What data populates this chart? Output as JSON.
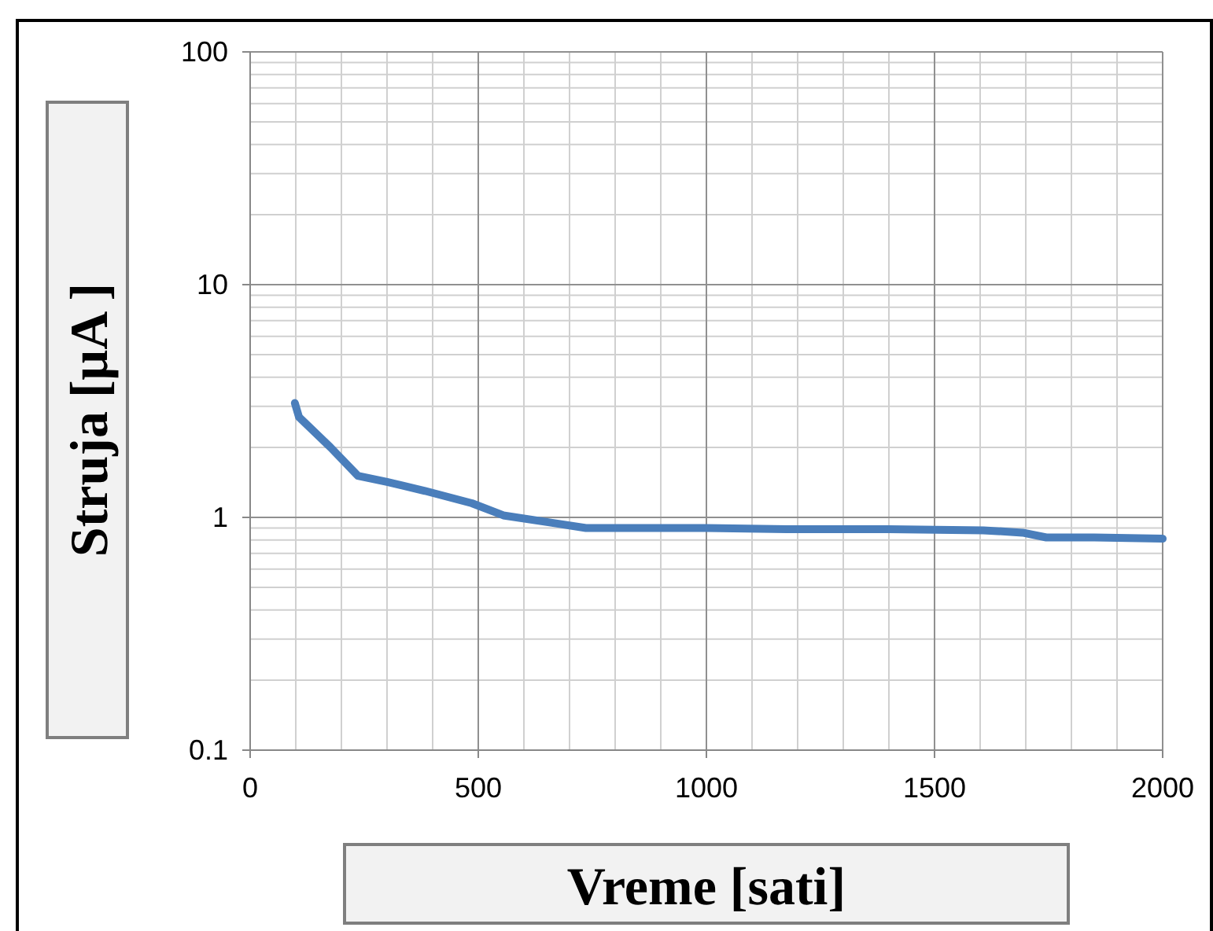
{
  "chart_data": {
    "type": "line",
    "xlabel": "Vreme [sati]",
    "ylabel": "Struja [μA ]",
    "log": true,
    "grid": true,
    "marker": "none",
    "line_style": "solid",
    "xlim": [
      0,
      2000
    ],
    "xticks": [
      0,
      500,
      1000,
      1500,
      2000
    ],
    "ylim": [
      0.1,
      100
    ],
    "yticks": [
      0.1,
      1,
      10,
      100
    ],
    "series": [
      {
        "color": "#4a7ebb",
        "x": [
          98,
          107,
          176,
          236,
          300,
          383,
          486,
          555,
          659,
          736,
          1000,
          1176,
          1400,
          1607,
          1693,
          1745,
          1850,
          2000
        ],
        "values": [
          3.1,
          2.7,
          2.0,
          1.51,
          1.42,
          1.3,
          1.15,
          1.02,
          0.95,
          0.9,
          0.9,
          0.89,
          0.89,
          0.88,
          0.86,
          0.82,
          0.82,
          0.81
        ]
      }
    ]
  }
}
